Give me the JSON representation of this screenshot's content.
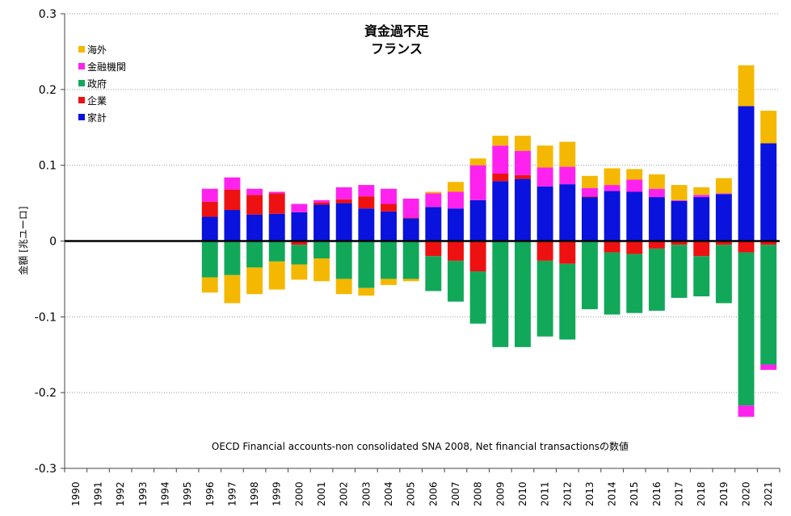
{
  "chart_data": {
    "type": "bar",
    "stacked": true,
    "title": "資金過不足",
    "subtitle": "フランス",
    "ylabel": "金額 [兆ユーロ]",
    "xlabel": "",
    "note": "OECD Financial accounts-non consolidated SNA 2008, Net financial transactionsの数値",
    "ylim": [
      -0.3,
      0.3
    ],
    "yticks": [
      "0.3",
      "0.2",
      "0.1",
      "0",
      "-0.1",
      "-0.2",
      "-0.3"
    ],
    "grid": true,
    "legend_position": "top-left",
    "categories": [
      "1990",
      "1991",
      "1992",
      "1993",
      "1994",
      "1995",
      "1996",
      "1997",
      "1998",
      "1999",
      "2000",
      "2001",
      "2002",
      "2003",
      "2004",
      "2005",
      "2006",
      "2007",
      "2008",
      "2009",
      "2010",
      "2011",
      "2012",
      "2013",
      "2014",
      "2015",
      "2016",
      "2017",
      "2018",
      "2019",
      "2020",
      "2021"
    ],
    "series": [
      {
        "name": "海外",
        "color": "#f5b800",
        "values": [
          null,
          null,
          null,
          null,
          null,
          null,
          -0.02,
          -0.037,
          -0.035,
          -0.037,
          -0.02,
          -0.03,
          -0.02,
          -0.01,
          -0.008,
          -0.003,
          0.002,
          0.013,
          0.009,
          0.013,
          0.02,
          0.029,
          0.033,
          0.016,
          0.022,
          0.014,
          0.019,
          0.02,
          0.01,
          0.02,
          0.054,
          0.043
        ]
      },
      {
        "name": "金融機関",
        "color": "#ff22ee",
        "values": [
          null,
          null,
          null,
          null,
          null,
          null,
          0.017,
          0.016,
          0.008,
          0.002,
          0.011,
          0.003,
          0.016,
          0.015,
          0.02,
          0.025,
          0.018,
          0.022,
          0.046,
          0.037,
          0.032,
          0.025,
          0.023,
          0.011,
          0.008,
          0.016,
          0.011,
          0.001,
          0.003,
          0.001,
          -0.015,
          -0.007
        ]
      },
      {
        "name": "政府",
        "color": "#12a85a",
        "values": [
          null,
          null,
          null,
          null,
          null,
          null,
          -0.048,
          -0.045,
          -0.035,
          -0.027,
          -0.026,
          -0.023,
          -0.05,
          -0.062,
          -0.05,
          -0.05,
          -0.046,
          -0.054,
          -0.069,
          -0.14,
          -0.14,
          -0.1,
          -0.1,
          -0.09,
          -0.082,
          -0.078,
          -0.082,
          -0.07,
          -0.053,
          -0.077,
          -0.202,
          -0.158
        ]
      },
      {
        "name": "企業",
        "color": "#ee1111",
        "values": [
          null,
          null,
          null,
          null,
          null,
          null,
          0.02,
          0.027,
          0.026,
          0.027,
          -0.005,
          0.003,
          0.005,
          0.016,
          0.01,
          0.001,
          -0.02,
          -0.026,
          -0.04,
          0.01,
          0.005,
          -0.026,
          -0.03,
          0.001,
          -0.015,
          -0.017,
          -0.01,
          -0.005,
          -0.02,
          -0.005,
          -0.015,
          -0.005
        ]
      },
      {
        "name": "家計",
        "color": "#0a12dd",
        "values": [
          null,
          null,
          null,
          null,
          null,
          null,
          0.032,
          0.041,
          0.035,
          0.036,
          0.038,
          0.048,
          0.05,
          0.043,
          0.039,
          0.03,
          0.045,
          0.043,
          0.054,
          0.079,
          0.082,
          0.072,
          0.075,
          0.058,
          0.066,
          0.065,
          0.058,
          0.053,
          0.058,
          0.062,
          0.178,
          0.129
        ]
      }
    ]
  }
}
